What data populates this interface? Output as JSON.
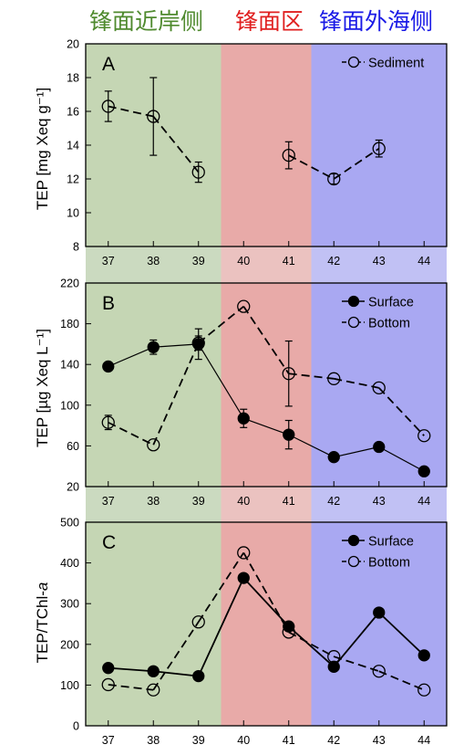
{
  "zone_labels": {
    "nearshore": {
      "text": "锋面近岸侧",
      "color": "#4f8a2e"
    },
    "front": {
      "text": "锋面区",
      "color": "#e02020"
    },
    "offshore": {
      "text": "锋面外海侧",
      "color": "#1a1ae6"
    }
  },
  "colors": {
    "nearshore_fill": "#c5d6b4",
    "front_fill": "#e8aaa8",
    "offshore_fill": "#a9a8f2",
    "band_left": "#cbdac0",
    "band_mid": "#ebc2c0",
    "band_right": "#c1c1f4",
    "ink": "#000000"
  },
  "stations": [
    "37",
    "38",
    "39",
    "40",
    "41",
    "42",
    "43",
    "44"
  ],
  "zones": [
    {
      "name": "nearshore",
      "from": 36.5,
      "to": 39.5
    },
    {
      "name": "front",
      "from": 39.5,
      "to": 41.5
    },
    {
      "name": "offshore",
      "from": 41.5,
      "to": 44.5
    }
  ],
  "chart_data": [
    {
      "type": "line",
      "panel": "A",
      "ylabel": "TEP [mg Xeq g⁻¹]",
      "ylim": [
        8,
        20
      ],
      "yticks": [
        8,
        10,
        12,
        14,
        16,
        18,
        20
      ],
      "x": [
        37,
        38,
        39,
        40,
        41,
        42,
        43,
        44
      ],
      "legend_position": "top-right",
      "series": [
        {
          "name": "Sediment",
          "marker": "open",
          "line": "dashed",
          "values": [
            16.3,
            15.7,
            12.4,
            null,
            13.4,
            12.0,
            13.8,
            null
          ],
          "error": [
            0.9,
            2.3,
            0.6,
            null,
            0.8,
            0.3,
            0.5,
            null
          ]
        }
      ]
    },
    {
      "type": "line",
      "panel": "B",
      "ylabel": "TEP [µg Xeq L⁻¹]",
      "ylim": [
        20,
        220
      ],
      "yticks": [
        20,
        60,
        100,
        140,
        180,
        220
      ],
      "x": [
        37,
        38,
        39,
        40,
        41,
        42,
        43,
        44
      ],
      "legend_position": "top-right",
      "series": [
        {
          "name": "Surface",
          "marker": "filled",
          "line": "solid",
          "values": [
            138,
            157,
            160,
            87,
            71,
            49,
            59,
            35
          ],
          "error": [
            0,
            7,
            15,
            9,
            14,
            0,
            0,
            0
          ]
        },
        {
          "name": "Bottom",
          "marker": "open",
          "line": "dashed",
          "values": [
            83,
            61,
            161,
            197,
            131,
            126,
            117,
            70
          ],
          "error": [
            7,
            0,
            7,
            0,
            32,
            0,
            0,
            0
          ]
        }
      ]
    },
    {
      "type": "line",
      "panel": "C",
      "ylabel": "TEP/TChl-a",
      "ylabel_main": "TEP/TChl-",
      "ylabel_italic": "a",
      "ylim": [
        0,
        500
      ],
      "yticks": [
        0,
        100,
        200,
        300,
        400,
        500
      ],
      "x": [
        37,
        38,
        39,
        40,
        41,
        42,
        43,
        44
      ],
      "legend_position": "top-right",
      "series": [
        {
          "name": "Surface",
          "marker": "filled",
          "line": "solid",
          "values": [
            142,
            134,
            122,
            363,
            244,
            145,
            278,
            173
          ]
        },
        {
          "name": "Bottom",
          "marker": "open",
          "line": "dashed",
          "values": [
            101,
            88,
            255,
            425,
            230,
            170,
            134,
            88
          ]
        }
      ]
    }
  ]
}
